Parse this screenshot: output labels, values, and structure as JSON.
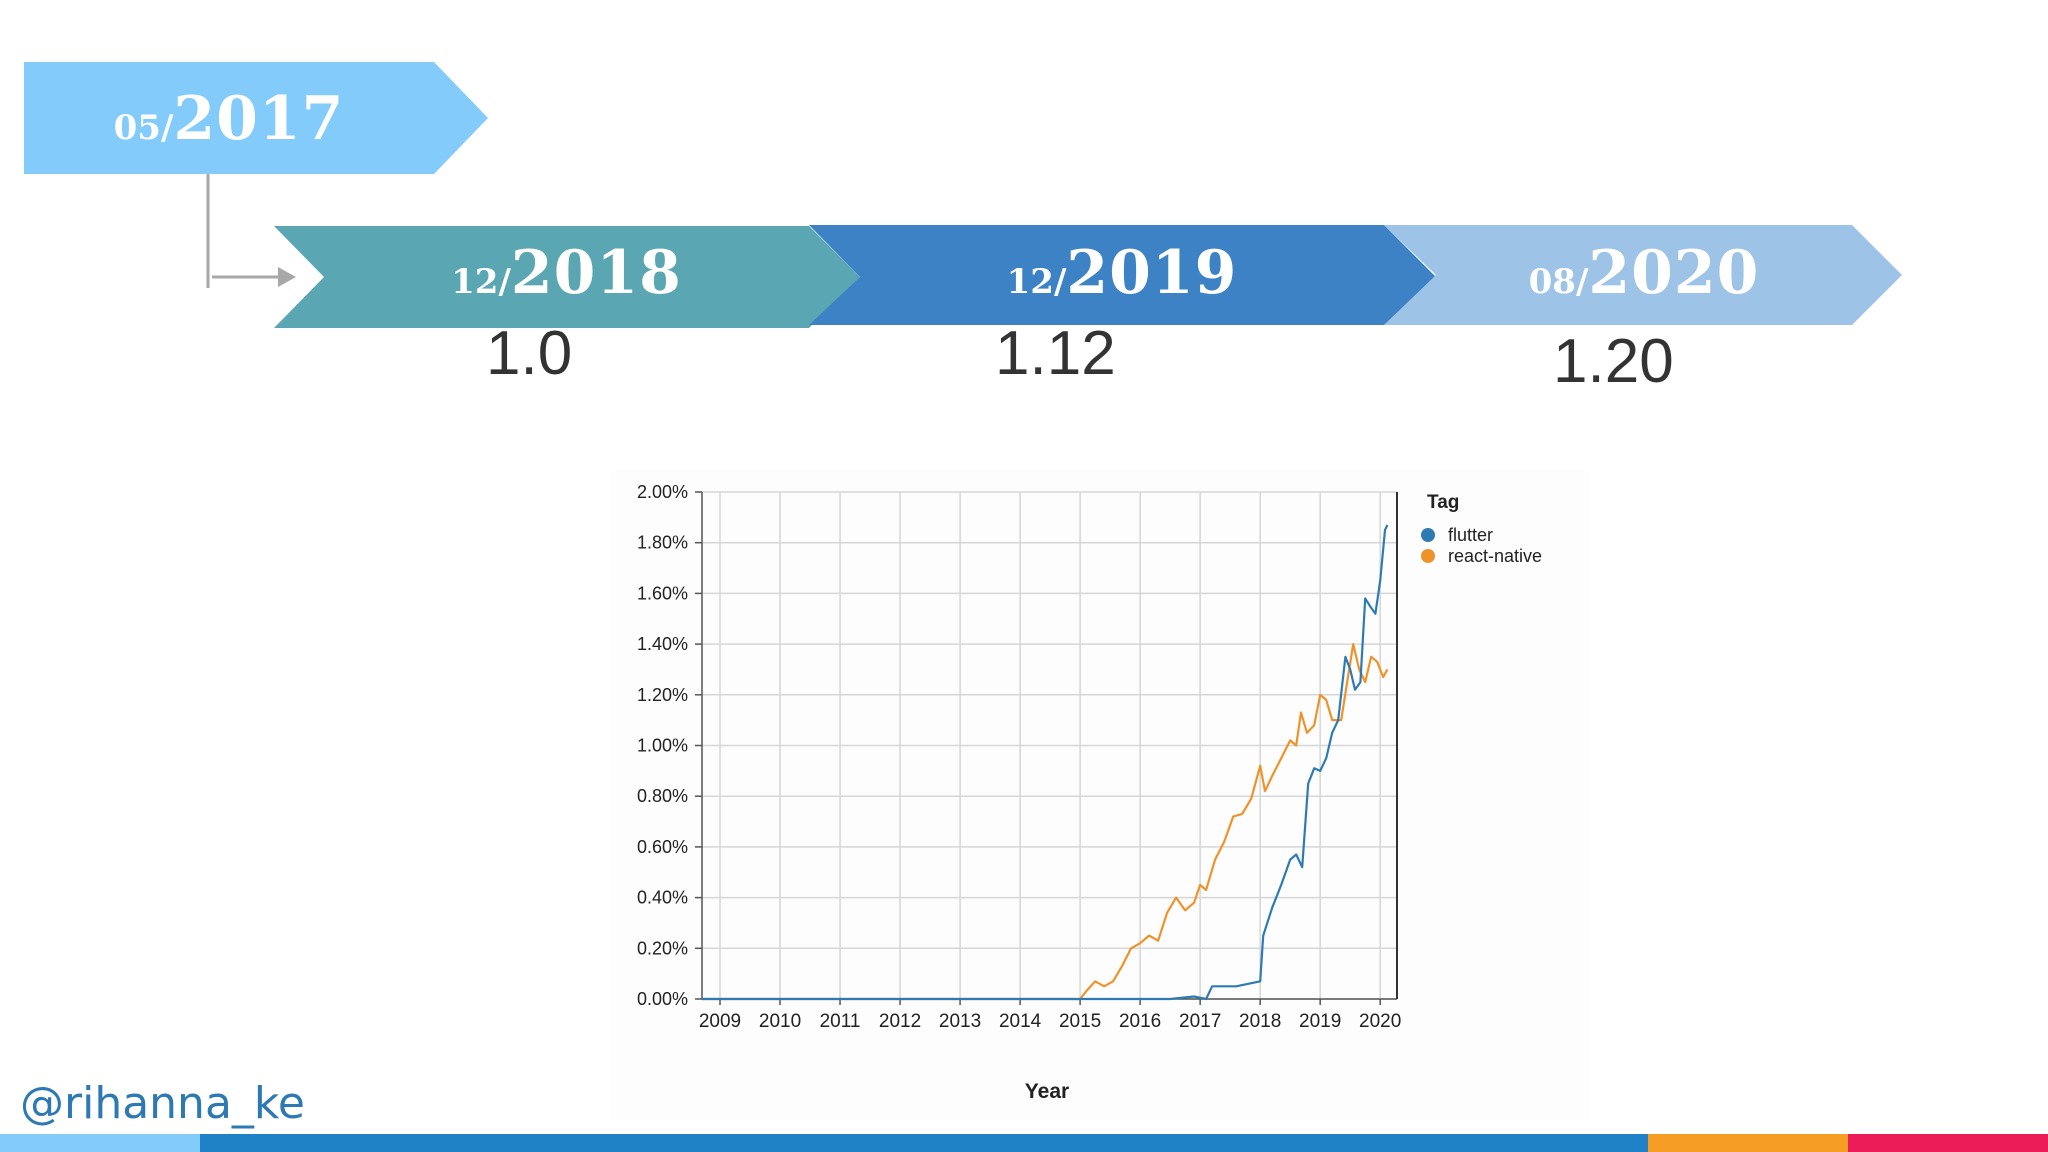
{
  "timeline": {
    "start": {
      "month": "05/",
      "year": "2017",
      "color": "#82cbfb"
    },
    "milestones": [
      {
        "month": "12/",
        "year": "2018",
        "version": "1.0",
        "color": "#5aa7b3"
      },
      {
        "month": "12/",
        "year": "2019",
        "version": "1.12",
        "color": "#3c82c4"
      },
      {
        "month": "08/",
        "year": "2020",
        "version": "1.20",
        "color": "#9dc3e6"
      }
    ],
    "connector_color": "#a8a8a8"
  },
  "chart_data": {
    "type": "line",
    "title": "",
    "xlabel": "Year",
    "ylabel": "",
    "x_ticks": [
      "2009",
      "2010",
      "2011",
      "2012",
      "2013",
      "2014",
      "2015",
      "2016",
      "2017",
      "2018",
      "2019",
      "2020"
    ],
    "y_ticks": [
      "0.00%",
      "0.20%",
      "0.40%",
      "0.60%",
      "0.80%",
      "1.00%",
      "1.20%",
      "1.40%",
      "1.60%",
      "1.80%",
      "2.00%"
    ],
    "xlim": [
      2008.7,
      2020.28
    ],
    "ylim": [
      0,
      2.0
    ],
    "grid": true,
    "legend_title": "Tag",
    "legend_position": "right",
    "series": [
      {
        "name": "flutter",
        "color": "#2e7bb4",
        "points": [
          [
            2008.7,
            0
          ],
          [
            2015.0,
            0
          ],
          [
            2016.5,
            0
          ],
          [
            2016.9,
            0.01
          ],
          [
            2017.1,
            0.0
          ],
          [
            2017.2,
            0.05
          ],
          [
            2017.4,
            0.05
          ],
          [
            2017.6,
            0.05
          ],
          [
            2017.8,
            0.06
          ],
          [
            2018.0,
            0.07
          ],
          [
            2018.05,
            0.25
          ],
          [
            2018.2,
            0.36
          ],
          [
            2018.35,
            0.45
          ],
          [
            2018.5,
            0.55
          ],
          [
            2018.6,
            0.57
          ],
          [
            2018.7,
            0.52
          ],
          [
            2018.8,
            0.85
          ],
          [
            2018.9,
            0.91
          ],
          [
            2019.0,
            0.9
          ],
          [
            2019.1,
            0.95
          ],
          [
            2019.2,
            1.05
          ],
          [
            2019.3,
            1.1
          ],
          [
            2019.42,
            1.35
          ],
          [
            2019.5,
            1.3
          ],
          [
            2019.58,
            1.22
          ],
          [
            2019.67,
            1.25
          ],
          [
            2019.75,
            1.58
          ],
          [
            2019.83,
            1.55
          ],
          [
            2019.92,
            1.52
          ],
          [
            2020.0,
            1.65
          ],
          [
            2020.08,
            1.85
          ],
          [
            2020.12,
            1.87
          ]
        ]
      },
      {
        "name": "react-native",
        "color": "#f0922a",
        "points": [
          [
            2008.7,
            0
          ],
          [
            2015.0,
            0
          ],
          [
            2015.1,
            0.03
          ],
          [
            2015.25,
            0.07
          ],
          [
            2015.4,
            0.05
          ],
          [
            2015.55,
            0.07
          ],
          [
            2015.7,
            0.13
          ],
          [
            2015.85,
            0.2
          ],
          [
            2016.0,
            0.22
          ],
          [
            2016.15,
            0.25
          ],
          [
            2016.3,
            0.23
          ],
          [
            2016.45,
            0.34
          ],
          [
            2016.6,
            0.4
          ],
          [
            2016.75,
            0.35
          ],
          [
            2016.9,
            0.38
          ],
          [
            2017.0,
            0.45
          ],
          [
            2017.1,
            0.43
          ],
          [
            2017.25,
            0.55
          ],
          [
            2017.4,
            0.62
          ],
          [
            2017.55,
            0.72
          ],
          [
            2017.7,
            0.73
          ],
          [
            2017.85,
            0.79
          ],
          [
            2018.0,
            0.92
          ],
          [
            2018.08,
            0.82
          ],
          [
            2018.2,
            0.88
          ],
          [
            2018.35,
            0.95
          ],
          [
            2018.5,
            1.02
          ],
          [
            2018.6,
            1.0
          ],
          [
            2018.68,
            1.13
          ],
          [
            2018.78,
            1.05
          ],
          [
            2018.9,
            1.08
          ],
          [
            2019.0,
            1.2
          ],
          [
            2019.1,
            1.18
          ],
          [
            2019.2,
            1.1
          ],
          [
            2019.35,
            1.1
          ],
          [
            2019.45,
            1.25
          ],
          [
            2019.55,
            1.4
          ],
          [
            2019.65,
            1.3
          ],
          [
            2019.75,
            1.25
          ],
          [
            2019.85,
            1.35
          ],
          [
            2019.95,
            1.33
          ],
          [
            2020.05,
            1.27
          ],
          [
            2020.12,
            1.3
          ]
        ]
      }
    ]
  },
  "handle": "@rihanna_ke",
  "footer_colors": [
    "#82cbfb",
    "#1f82c6",
    "#f59d24",
    "#ea1b57"
  ]
}
